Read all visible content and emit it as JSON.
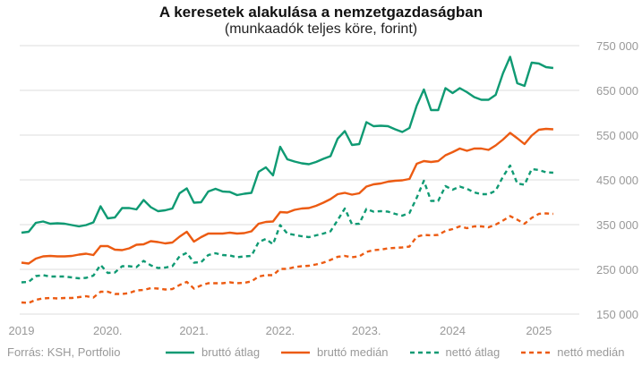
{
  "header": {
    "title": "A keresetek alakulása a nemzetgazdaságban",
    "subtitle": "(munkaadók teljes köre, forint)"
  },
  "footer": {
    "source": "Forrás: KSH, Portfolio"
  },
  "colors": {
    "green": "#0f9a73",
    "orange": "#ec5b12",
    "grid": "#dcdcdc",
    "axis_text": "#999999"
  },
  "chart_data": {
    "type": "line",
    "title": "A keresetek alakulása a nemzetgazdaságban",
    "subtitle": "(munkaadók teljes köre, forint)",
    "xlabel": "",
    "ylabel": "",
    "x_ticks": [
      "2019",
      "2020.",
      "2021.",
      "2022.",
      "2023.",
      "2024",
      "2025"
    ],
    "y_ticks": [
      "150 000",
      "250 000",
      "350 000",
      "450 000",
      "550 000",
      "650 000",
      "750 000"
    ],
    "ylim": [
      150000,
      750000
    ],
    "y_axis_side": "right",
    "grid": "horizontal",
    "legend_position": "bottom",
    "x_start": "2019-01",
    "x_end": "2025-05",
    "series": [
      {
        "name": "bruttó átlag",
        "color": "#0f9a73",
        "style": "solid",
        "values": [
          332000,
          334000,
          354000,
          357000,
          352000,
          353000,
          352000,
          349000,
          346000,
          349000,
          355000,
          391000,
          364000,
          366000,
          387000,
          387000,
          384000,
          405000,
          389000,
          380000,
          382000,
          386000,
          420000,
          431000,
          399000,
          400000,
          424000,
          430000,
          424000,
          423000,
          416000,
          419000,
          421000,
          468000,
          478000,
          460000,
          524000,
          496000,
          491000,
          487000,
          485000,
          490000,
          497000,
          503000,
          542000,
          559000,
          528000,
          530000,
          579000,
          570000,
          571000,
          570000,
          563000,
          557000,
          566000,
          616000,
          652000,
          606000,
          606000,
          655000,
          644000,
          655000,
          646000,
          635000,
          629000,
          629000,
          640000,
          688000,
          725000,
          666000,
          660000,
          712000,
          710000,
          702000,
          700000
        ],
        "x_start_offset_years": 0
      },
      {
        "name": "bruttó medián",
        "color": "#ec5b12",
        "style": "solid",
        "values": [
          265000,
          263000,
          274000,
          279000,
          280000,
          279000,
          279000,
          280000,
          283000,
          285000,
          282000,
          302000,
          302000,
          294000,
          293000,
          297000,
          305000,
          306000,
          313000,
          311000,
          308000,
          310000,
          323000,
          334000,
          312000,
          322000,
          330000,
          330000,
          330000,
          332000,
          330000,
          331000,
          335000,
          352000,
          356000,
          357000,
          378000,
          377000,
          383000,
          386000,
          387000,
          392000,
          399000,
          407000,
          418000,
          421000,
          417000,
          420000,
          435000,
          440000,
          442000,
          446000,
          448000,
          449000,
          452000,
          486000,
          492000,
          490000,
          492000,
          505000,
          512000,
          520000,
          515000,
          520000,
          520000,
          517000,
          527000,
          540000,
          555000,
          543000,
          530000,
          549000,
          562000,
          564000,
          563000
        ]
      },
      {
        "name": "nettó átlag",
        "color": "#0f9a73",
        "style": "dashed",
        "values": [
          221000,
          222000,
          235000,
          237000,
          234000,
          234000,
          234000,
          232000,
          230000,
          231000,
          236000,
          260000,
          242000,
          243000,
          257000,
          257000,
          255000,
          269000,
          259000,
          253000,
          254000,
          257000,
          279000,
          287000,
          265000,
          266000,
          282000,
          286000,
          282000,
          281000,
          277000,
          279000,
          280000,
          311000,
          318000,
          306000,
          349000,
          330000,
          327000,
          324000,
          322000,
          326000,
          330000,
          335000,
          360000,
          386000,
          351000,
          352000,
          385000,
          379000,
          380000,
          379000,
          374000,
          370000,
          376000,
          410000,
          448000,
          403000,
          403000,
          436000,
          428000,
          435000,
          430000,
          422000,
          418000,
          418000,
          426000,
          457000,
          482000,
          442000,
          439000,
          474000,
          472000,
          467000,
          466000
        ]
      },
      {
        "name": "nettó medián",
        "color": "#ec5b12",
        "style": "dashed",
        "values": [
          176000,
          175000,
          182000,
          185000,
          186000,
          185000,
          186000,
          186000,
          188000,
          190000,
          187000,
          200000,
          200000,
          195000,
          195000,
          197000,
          203000,
          204000,
          208000,
          207000,
          205000,
          206000,
          215000,
          222000,
          207000,
          214000,
          219000,
          219000,
          219000,
          221000,
          219000,
          220000,
          223000,
          234000,
          237000,
          237000,
          251000,
          251000,
          255000,
          257000,
          258000,
          261000,
          265000,
          271000,
          278000,
          280000,
          277000,
          279000,
          289000,
          293000,
          294000,
          297000,
          298000,
          299000,
          301000,
          323000,
          327000,
          326000,
          327000,
          336000,
          340000,
          346000,
          342000,
          346000,
          346000,
          344000,
          350000,
          359000,
          369000,
          361000,
          352000,
          365000,
          374000,
          375000,
          374000
        ]
      }
    ]
  }
}
